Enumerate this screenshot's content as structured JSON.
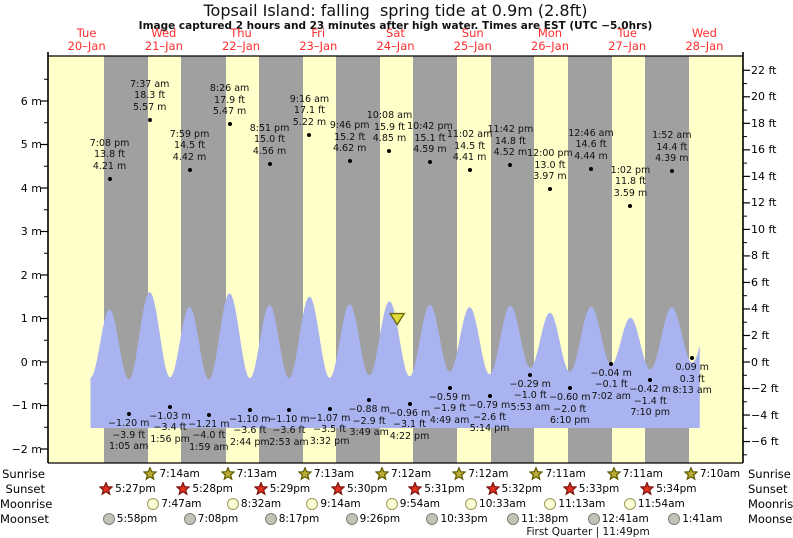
{
  "header": {
    "title": "Topsail Island: falling  spring tide at 0.9m (2.8ft)",
    "subtitle": "Image captured 2 hours and 23 minutes after high water. Times are EST (UTC −5.0hrs)"
  },
  "colors": {
    "day_band": "#ffffc9",
    "night_band": "#a0a0a0",
    "tide_fill": "#a9b3ef",
    "day_label_red": "#ff2e2e",
    "axis": "#000000",
    "sunrise_star_fill": "#b9ad33",
    "sunrise_star_stroke": "#5f5a00",
    "sunset_star_fill": "#e03020",
    "sunset_star_stroke": "#7a1008",
    "moonrise_fill": "#ffffd6",
    "moonrise_stroke": "#9a9a55",
    "moonset_fill": "#c2c2b6",
    "moonset_stroke": "#80807a",
    "marker_fill": "#e2da3a",
    "marker_stroke": "#6a6a10"
  },
  "chart_data": {
    "type": "area",
    "title": "Topsail Island: falling  spring tide at 0.9m (2.8ft)",
    "x_days": [
      {
        "label": "Tue",
        "date": "20–Jan"
      },
      {
        "label": "Wed",
        "date": "21–Jan"
      },
      {
        "label": "Thu",
        "date": "22–Jan"
      },
      {
        "label": "Fri",
        "date": "23–Jan"
      },
      {
        "label": "Sat",
        "date": "24–Jan"
      },
      {
        "label": "Sun",
        "date": "25–Jan"
      },
      {
        "label": "Mon",
        "date": "26–Jan"
      },
      {
        "label": "Tue",
        "date": "27–Jan"
      },
      {
        "label": "Wed",
        "date": "28–Jan"
      }
    ],
    "y_axis_left": {
      "unit": "m",
      "ticks": [
        {
          "v": 6,
          "t": "6 m"
        },
        {
          "v": 5,
          "t": "5 m"
        },
        {
          "v": 4,
          "t": "4 m"
        },
        {
          "v": 3,
          "t": "3 m"
        },
        {
          "v": 2,
          "t": "2 m"
        },
        {
          "v": 1,
          "t": "1 m"
        },
        {
          "v": 0,
          "t": "0 m"
        },
        {
          "v": -1,
          "t": "−1 m"
        },
        {
          "v": -2,
          "t": "−2 m"
        }
      ]
    },
    "y_axis_right": {
      "unit": "ft",
      "ticks": [
        {
          "v": 22,
          "t": "22 ft"
        },
        {
          "v": 20,
          "t": "20 ft"
        },
        {
          "v": 18,
          "t": "18 ft"
        },
        {
          "v": 16,
          "t": "16 ft"
        },
        {
          "v": 14,
          "t": "14 ft"
        },
        {
          "v": 12,
          "t": "12 ft"
        },
        {
          "v": 10,
          "t": "10 ft"
        },
        {
          "v": 8,
          "t": "8 ft"
        },
        {
          "v": 6,
          "t": "6 ft"
        },
        {
          "v": 4,
          "t": "4 ft"
        },
        {
          "v": 2,
          "t": "2 ft"
        },
        {
          "v": 0,
          "t": "0 ft"
        },
        {
          "v": -2,
          "t": "−2 ft"
        },
        {
          "v": -4,
          "t": "−4 ft"
        },
        {
          "v": -6,
          "t": "−6 ft"
        }
      ]
    },
    "tide_events": [
      {
        "kind": "high",
        "d": 0.7972,
        "v": 4.21,
        "lines": [
          "7:08 pm",
          "13.8 ft",
          "4.21 m"
        ]
      },
      {
        "kind": "low",
        "d": 1.0451,
        "v": -1.2,
        "lines": [
          "−1.20 m",
          "−3.9 ft",
          "1:05 am"
        ]
      },
      {
        "kind": "high",
        "d": 1.3174,
        "v": 5.57,
        "lines": [
          "7:37 am",
          "18.3 ft",
          "5.57 m"
        ]
      },
      {
        "kind": "low",
        "d": 1.5806,
        "v": -1.03,
        "lines": [
          "−1.03 m",
          "−3.4 ft",
          "1:56 pm"
        ]
      },
      {
        "kind": "high",
        "d": 1.8326,
        "v": 4.42,
        "lines": [
          "7:59 pm",
          "14.5 ft",
          "4.42 m"
        ]
      },
      {
        "kind": "low",
        "d": 2.0826,
        "v": -1.21,
        "lines": [
          "−1.21 m",
          "−4.0 ft",
          "1:59 am"
        ]
      },
      {
        "kind": "high",
        "d": 2.3514,
        "v": 5.47,
        "lines": [
          "8:26 am",
          "17.9 ft",
          "5.47 m"
        ]
      },
      {
        "kind": "low",
        "d": 2.6139,
        "v": -1.1,
        "lines": [
          "−1.10 m",
          "−3.6 ft",
          "2:44 pm"
        ]
      },
      {
        "kind": "high",
        "d": 2.8688,
        "v": 4.56,
        "lines": [
          "8:51 pm",
          "15.0 ft",
          "4.56 m"
        ]
      },
      {
        "kind": "low",
        "d": 3.1201,
        "v": -1.1,
        "lines": [
          "−1.10 m",
          "−3.6 ft",
          "2:53 am"
        ]
      },
      {
        "kind": "high",
        "d": 3.3861,
        "v": 5.22,
        "lines": [
          "9:16 am",
          "17.1 ft",
          "5.22 m"
        ]
      },
      {
        "kind": "low",
        "d": 3.6472,
        "v": -1.07,
        "lines": [
          "−1.07 m",
          "−3.5 ft",
          "3:32 pm"
        ]
      },
      {
        "kind": "high",
        "d": 3.9069,
        "v": 4.62,
        "lines": [
          "9:46 pm",
          "15.2 ft",
          "4.62 m"
        ]
      },
      {
        "kind": "low",
        "d": 4.159,
        "v": -0.88,
        "lines": [
          "−0.88 m",
          "−2.9 ft",
          "3:49 am"
        ]
      },
      {
        "kind": "high",
        "d": 4.4222,
        "v": 4.85,
        "lines": [
          "10:08 am",
          "15.9 ft",
          "4.85 m"
        ]
      },
      {
        "kind": "low",
        "d": 4.6819,
        "v": -0.96,
        "lines": [
          "−0.96 m",
          "−3.1 ft",
          "4:22 pm"
        ]
      },
      {
        "kind": "high",
        "d": 4.9458,
        "v": 4.59,
        "lines": [
          "10:42 pm",
          "15.1 ft",
          "4.59 m"
        ]
      },
      {
        "kind": "low",
        "d": 5.2007,
        "v": -0.59,
        "lines": [
          "−0.59 m",
          "−1.9 ft",
          "4:49 am"
        ]
      },
      {
        "kind": "high",
        "d": 5.4597,
        "v": 4.41,
        "lines": [
          "11:02 am",
          "14.5 ft",
          "4.41 m"
        ]
      },
      {
        "kind": "low",
        "d": 5.7181,
        "v": -0.79,
        "lines": [
          "−0.79 m",
          "−2.6 ft",
          "5:14 pm"
        ]
      },
      {
        "kind": "high",
        "d": 5.9875,
        "v": 4.52,
        "lines": [
          "11:42 pm",
          "14.8 ft",
          "4.52 m"
        ]
      },
      {
        "kind": "low",
        "d": 6.2451,
        "v": -0.29,
        "lines": [
          "−0.29 m",
          "−1.0 ft",
          "5:53 am"
        ]
      },
      {
        "kind": "high",
        "d": 6.5,
        "v": 3.97,
        "lines": [
          "12:00 pm",
          "13.0 ft",
          "3.97 m"
        ]
      },
      {
        "kind": "low",
        "d": 6.7569,
        "v": -0.6,
        "lines": [
          "−0.60 m",
          "−2.0 ft",
          "6:10 pm"
        ]
      },
      {
        "kind": "high",
        "d": 7.0319,
        "v": 4.44,
        "lines": [
          "12:46 am",
          "14.6 ft",
          "4.44 m"
        ]
      },
      {
        "kind": "low",
        "d": 7.2931,
        "v": -0.04,
        "lines": [
          "−0.04 m",
          "−0.1 ft",
          "7:02 am"
        ]
      },
      {
        "kind": "high",
        "d": 7.5431,
        "v": 3.59,
        "lines": [
          "1:02 pm",
          "11.8 ft",
          "3.59 m"
        ]
      },
      {
        "kind": "low",
        "d": 7.7986,
        "v": -0.42,
        "lines": [
          "−0.42 m",
          "−1.4 ft",
          "7:10 pm"
        ]
      },
      {
        "kind": "high",
        "d": 8.0778,
        "v": 4.39,
        "lines": [
          "1:52 am",
          "14.4 ft",
          "4.39 m"
        ]
      },
      {
        "kind": "low",
        "d": 8.3424,
        "v": 0.09,
        "lines": [
          "0.09 m",
          "0.3 ft",
          "8:13 am"
        ]
      }
    ],
    "wave": {
      "start": {
        "d": 0.55,
        "v": -1.05
      },
      "end": {
        "d": 8.597,
        "v": 4.3
      },
      "clip_end_d": 8.44
    },
    "now_marker": {
      "d": 4.522,
      "tide_m": 0.9,
      "tide_ft": 2.8,
      "state": "falling"
    }
  },
  "almanac": {
    "rows": [
      {
        "key": "sunrise",
        "label": "Sunrise",
        "icon": "star",
        "entries": [
          {
            "d": 1.3014,
            "t": "7:14am"
          },
          {
            "d": 2.3007,
            "t": "7:13am"
          },
          {
            "d": 3.3007,
            "t": "7:13am"
          },
          {
            "d": 4.3,
            "t": "7:12am"
          },
          {
            "d": 5.3,
            "t": "7:12am"
          },
          {
            "d": 6.2993,
            "t": "7:11am"
          },
          {
            "d": 7.2993,
            "t": "7:11am"
          },
          {
            "d": 8.2986,
            "t": "7:10am"
          }
        ]
      },
      {
        "key": "sunset",
        "label": "Sunset",
        "icon": "star",
        "entries": [
          {
            "d": 0.7271,
            "t": "5:27pm"
          },
          {
            "d": 1.7278,
            "t": "5:28pm"
          },
          {
            "d": 2.7285,
            "t": "5:29pm"
          },
          {
            "d": 3.7292,
            "t": "5:30pm"
          },
          {
            "d": 4.7299,
            "t": "5:31pm"
          },
          {
            "d": 5.7306,
            "t": "5:32pm"
          },
          {
            "d": 6.7313,
            "t": "5:33pm"
          },
          {
            "d": 7.7319,
            "t": "5:34pm"
          }
        ]
      },
      {
        "key": "moonrise",
        "label": "Moonrise",
        "icon": "circle",
        "entries": [
          {
            "d": 1.3243,
            "t": "7:47am"
          },
          {
            "d": 2.3556,
            "t": "8:32am"
          },
          {
            "d": 3.3847,
            "t": "9:14am"
          },
          {
            "d": 4.4125,
            "t": "9:54am"
          },
          {
            "d": 5.4396,
            "t": "10:33am"
          },
          {
            "d": 6.4674,
            "t": "11:13am"
          },
          {
            "d": 7.4958,
            "t": "11:54am"
          }
        ]
      },
      {
        "key": "moonset",
        "label": "Moonset",
        "icon": "circle",
        "entries": [
          {
            "d": 0.7486,
            "t": "5:58pm"
          },
          {
            "d": 1.7972,
            "t": "7:08pm"
          },
          {
            "d": 2.8451,
            "t": "8:17pm"
          },
          {
            "d": 3.8931,
            "t": "9:26pm"
          },
          {
            "d": 4.9396,
            "t": "10:33pm"
          },
          {
            "d": 5.9847,
            "t": "11:38pm"
          },
          {
            "d": 7.0285,
            "t": "12:41am"
          },
          {
            "d": 8.0701,
            "t": "1:41am"
          }
        ]
      }
    ],
    "note": {
      "d": 6.993,
      "t": "First Quarter | 11:49pm"
    }
  }
}
